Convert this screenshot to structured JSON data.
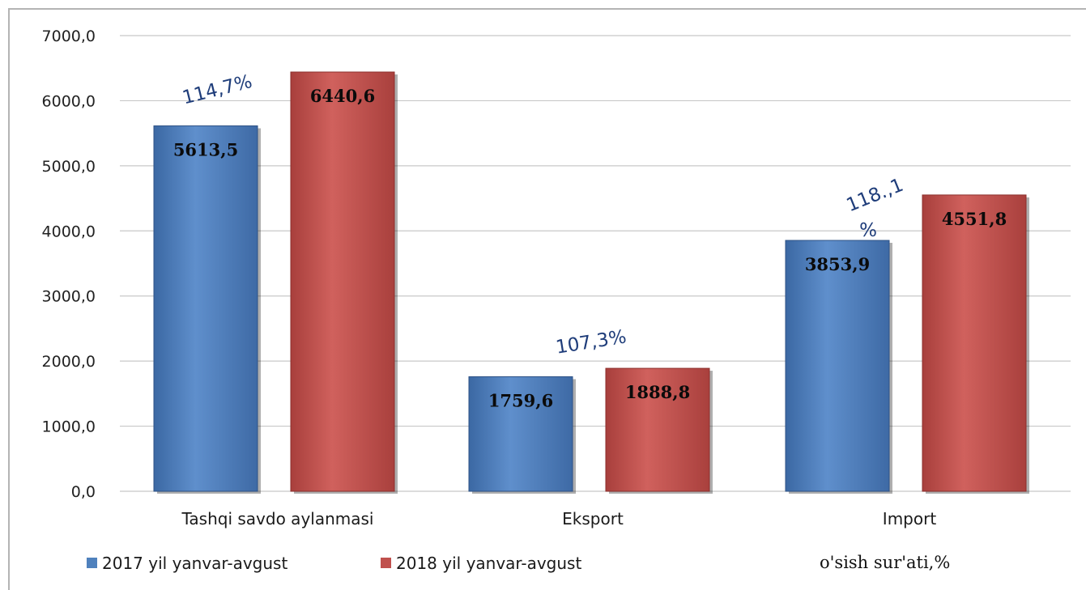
{
  "chart_data": {
    "type": "bar",
    "categories": [
      "Tashqi savdo aylanmasi",
      "Eksport",
      "Import"
    ],
    "series": [
      {
        "name": "2017 yil yanvar-avgust",
        "color": "#4f81bd",
        "values": [
          5613.5,
          1759.6,
          3853.9
        ],
        "labels": [
          "5613,5",
          "1759,6",
          "3853,9"
        ]
      },
      {
        "name": "2018 yil yanvar-avgust",
        "color": "#c0504d",
        "values": [
          6440.6,
          1888.8,
          4551.8
        ],
        "labels": [
          "6440,6",
          "1888,8",
          "4551,8"
        ]
      }
    ],
    "ylim": [
      0,
      7000
    ],
    "yticks": [
      0,
      1000,
      2000,
      3000,
      4000,
      5000,
      6000,
      7000
    ],
    "ytick_labels": [
      "0,0",
      "1000,0",
      "2000,0",
      "3000,0",
      "4000,0",
      "5000,0",
      "6000,0",
      "7000,0"
    ],
    "grid": true,
    "legend_position": "bottom-left",
    "legend_note": "o'sish sur'ati,%",
    "growth_labels": [
      {
        "category": "Tashqi savdo aylanmasi",
        "lines": [
          "114,7%"
        ]
      },
      {
        "category": "Eksport",
        "lines": [
          "107,3%"
        ]
      },
      {
        "category": "Import",
        "lines": [
          "118.,1",
          "%"
        ]
      }
    ]
  }
}
